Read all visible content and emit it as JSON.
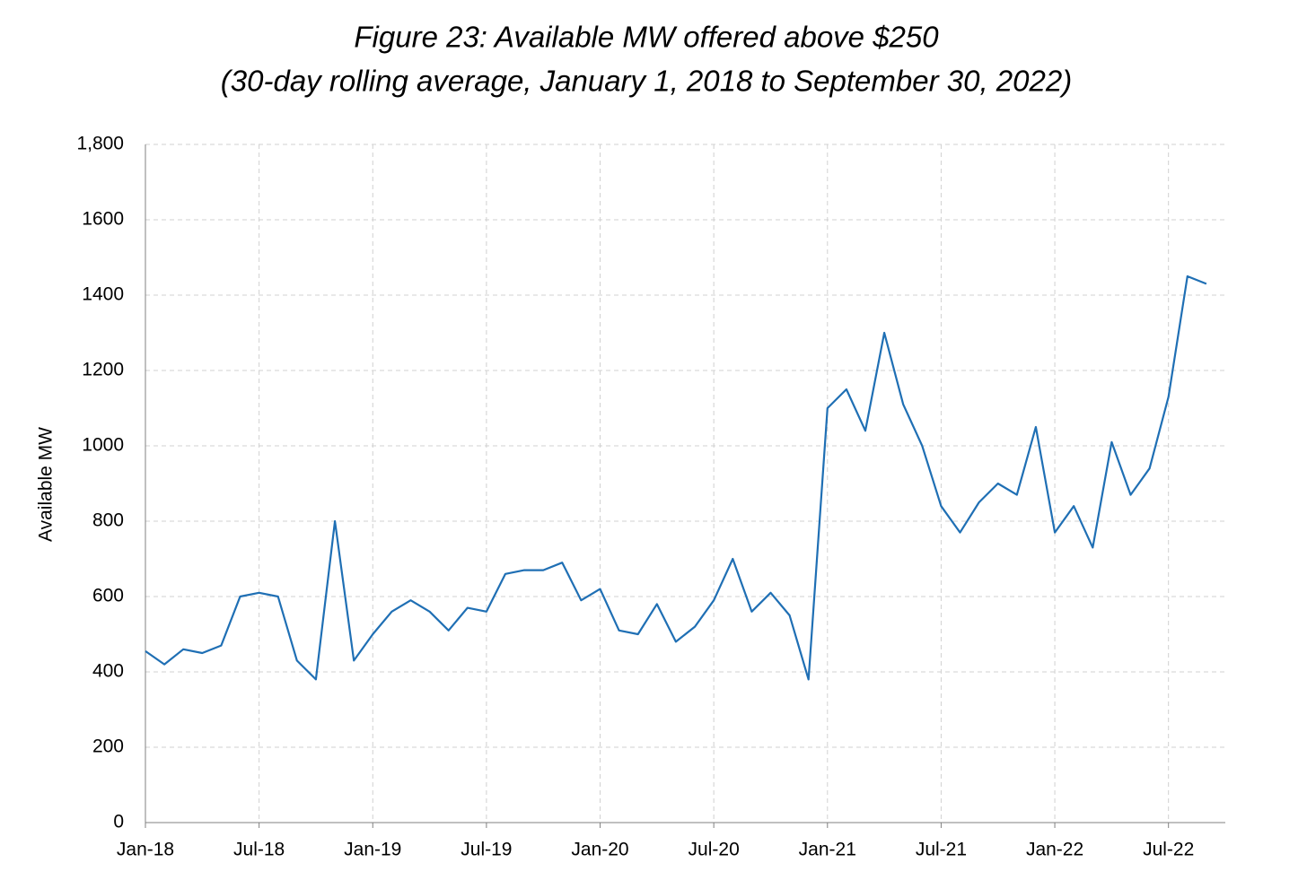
{
  "chart_data": {
    "type": "line",
    "title": "Figure 23: Available MW offered above $250",
    "subtitle": "(30-day rolling average, January 1, 2018 to September 30, 2022)",
    "y_label": "Available MW",
    "x": [
      "2018-01",
      "2018-02",
      "2018-03",
      "2018-04",
      "2018-05",
      "2018-06",
      "2018-07",
      "2018-08",
      "2018-09",
      "2018-10",
      "2018-11",
      "2018-12",
      "2019-01",
      "2019-02",
      "2019-03",
      "2019-04",
      "2019-05",
      "2019-06",
      "2019-07",
      "2019-08",
      "2019-09",
      "2019-10",
      "2019-11",
      "2019-12",
      "2020-01",
      "2020-02",
      "2020-03",
      "2020-04",
      "2020-05",
      "2020-06",
      "2020-07",
      "2020-08",
      "2020-09",
      "2020-10",
      "2020-11",
      "2020-12",
      "2021-01",
      "2021-02",
      "2021-03",
      "2021-04",
      "2021-05",
      "2021-06",
      "2021-07",
      "2021-08",
      "2021-09",
      "2021-10",
      "2021-11",
      "2021-12",
      "2022-01",
      "2022-02",
      "2022-03",
      "2022-04",
      "2022-05",
      "2022-06",
      "2022-07",
      "2022-08",
      "2022-09"
    ],
    "series": [
      {
        "name": "Available MW",
        "color": "#1f6fb4",
        "values": [
          455,
          420,
          460,
          450,
          470,
          600,
          610,
          600,
          430,
          380,
          800,
          430,
          500,
          560,
          590,
          560,
          510,
          570,
          560,
          660,
          670,
          670,
          690,
          590,
          620,
          510,
          500,
          580,
          480,
          520,
          590,
          700,
          560,
          610,
          550,
          380,
          1100,
          1150,
          1040,
          1300,
          1110,
          1000,
          840,
          770,
          850,
          900,
          870,
          1050,
          770,
          840,
          730,
          1010,
          870,
          940,
          1130,
          1450,
          1430
        ]
      }
    ],
    "xlim": [
      "2018-01",
      "2022-10"
    ],
    "xticks": [
      {
        "value": "2018-01",
        "label": "Jan-18"
      },
      {
        "value": "2018-07",
        "label": "Jul-18"
      },
      {
        "value": "2019-01",
        "label": "Jan-19"
      },
      {
        "value": "2019-07",
        "label": "Jul-19"
      },
      {
        "value": "2020-01",
        "label": "Jan-20"
      },
      {
        "value": "2020-07",
        "label": "Jul-20"
      },
      {
        "value": "2021-01",
        "label": "Jan-21"
      },
      {
        "value": "2021-07",
        "label": "Jul-21"
      },
      {
        "value": "2022-01",
        "label": "Jan-22"
      },
      {
        "value": "2022-07",
        "label": "Jul-22"
      }
    ],
    "ylim": [
      0,
      1800
    ],
    "yticks": [
      0,
      200,
      400,
      600,
      800,
      1000,
      1200,
      1400,
      1600,
      {
        "value": 1800,
        "label": "1,800"
      }
    ],
    "grid": true
  }
}
